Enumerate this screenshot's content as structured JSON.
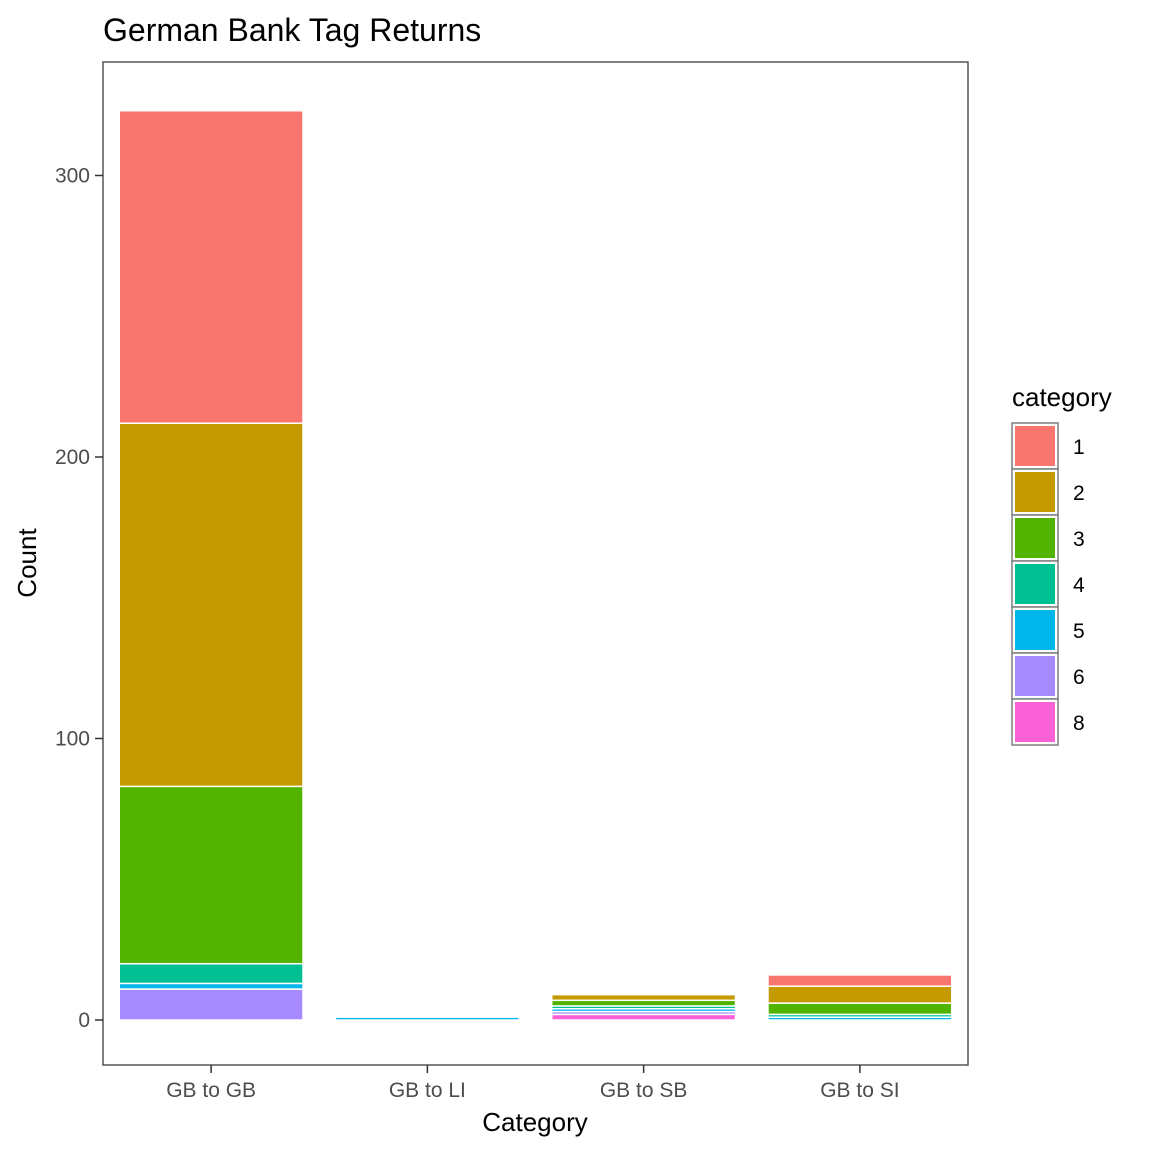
{
  "chart_data": {
    "type": "bar",
    "stacked": true,
    "title": "German Bank Tag Returns",
    "xlabel": "Category",
    "ylabel": "Count",
    "categories": [
      "GB to GB",
      "GB to LI",
      "GB to SB",
      "GB to SI"
    ],
    "ylim": [
      -15,
      331
    ],
    "yticks": [
      0,
      100,
      200,
      300
    ],
    "grid": false,
    "legend": {
      "title": "category",
      "position": "right"
    },
    "series": [
      {
        "name": "1",
        "color": "#F8766D",
        "values": [
          111,
          0,
          0,
          4
        ]
      },
      {
        "name": "2",
        "color": "#C49A00",
        "values": [
          129,
          0,
          2,
          6
        ]
      },
      {
        "name": "3",
        "color": "#53B400",
        "values": [
          63,
          0,
          2,
          4
        ]
      },
      {
        "name": "4",
        "color": "#00C094",
        "values": [
          7,
          0,
          1,
          1
        ]
      },
      {
        "name": "5",
        "color": "#00B6EB",
        "values": [
          2,
          1,
          1,
          1
        ]
      },
      {
        "name": "6",
        "color": "#A58AFF",
        "values": [
          11,
          0,
          1,
          0
        ]
      },
      {
        "name": "8",
        "color": "#FB61D7",
        "values": [
          0,
          0,
          2,
          0
        ]
      }
    ]
  }
}
